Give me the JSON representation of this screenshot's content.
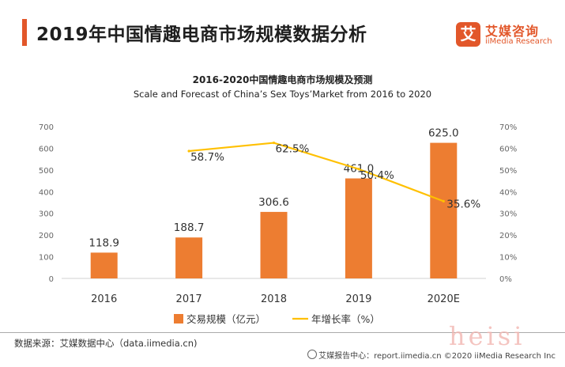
{
  "header": {
    "title": "2019年中国情趣电商市场规模数据分析",
    "logo_mark": "艾",
    "logo_cn": "艾媒咨询",
    "logo_en": "iiMedia Research"
  },
  "chart_data": {
    "type": "bar",
    "title": "2016-2020中国情趣电商市场规模及预测",
    "subtitle": "Scale and Forecast of China’s Sex Toys’Market from 2016 to 2020",
    "categories": [
      "2016",
      "2017",
      "2018",
      "2019",
      "2020E"
    ],
    "series": [
      {
        "name": "交易规模（亿元）",
        "type": "bar",
        "axis": "left",
        "color": "#ed7d31",
        "values": [
          118.9,
          188.7,
          306.6,
          461.0,
          625.0
        ],
        "labels": [
          "118.9",
          "188.7",
          "306.6",
          "461.0",
          "625.0"
        ]
      },
      {
        "name": "年增长率（%）",
        "type": "line",
        "axis": "right",
        "color": "#ffc000",
        "values": [
          null,
          58.7,
          62.5,
          50.4,
          35.6
        ],
        "labels": [
          "",
          "58.7%",
          "62.5%",
          "50.4%",
          "35.6%"
        ]
      }
    ],
    "left_axis": {
      "min": 0,
      "max": 700,
      "ticks": [
        "0",
        "100",
        "200",
        "300",
        "400",
        "500",
        "600",
        "700"
      ]
    },
    "right_axis": {
      "min": 0,
      "max": 70,
      "ticks": [
        "0%",
        "10%",
        "20%",
        "30%",
        "40%",
        "50%",
        "60%",
        "70%"
      ]
    },
    "grid": false,
    "legend_position": "bottom"
  },
  "footer": {
    "source": "数据来源：艾媒数据中心（data.iimedia.cn)",
    "copyright": "艾媒报告中心：report.iimedia.cn ©2020 iiMedia Research Inc",
    "watermark": "heisi"
  }
}
